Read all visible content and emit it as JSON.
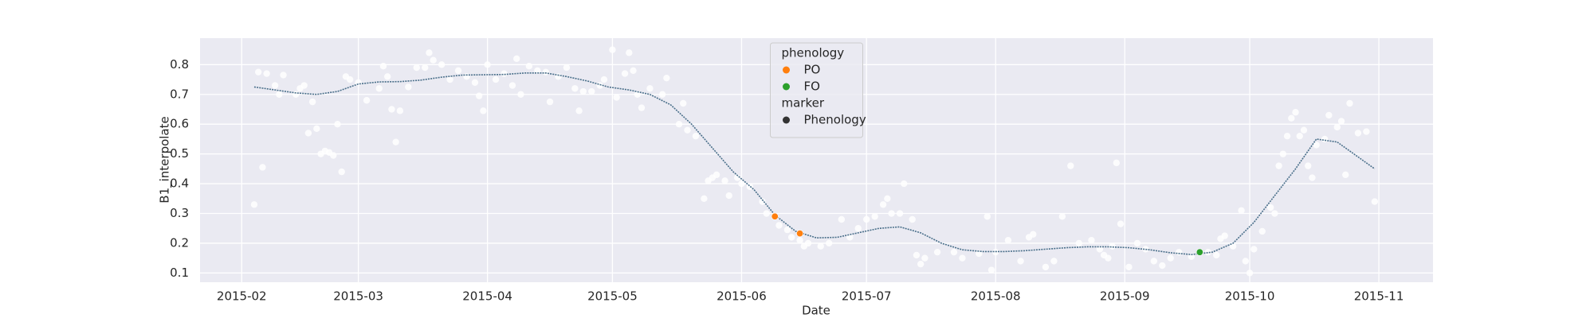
{
  "chart_data": {
    "type": "scatter",
    "x_label": "Date",
    "y_label": "B1_interpolate",
    "xlim": [
      22,
      318
    ],
    "ylim": [
      0.069,
      0.889
    ],
    "xticks": [
      {
        "value": 32,
        "label": "2015-02"
      },
      {
        "value": 60,
        "label": "2015-03"
      },
      {
        "value": 91,
        "label": "2015-04"
      },
      {
        "value": 121,
        "label": "2015-05"
      },
      {
        "value": 152,
        "label": "2015-06"
      },
      {
        "value": 182,
        "label": "2015-07"
      },
      {
        "value": 213,
        "label": "2015-08"
      },
      {
        "value": 244,
        "label": "2015-09"
      },
      {
        "value": 274,
        "label": "2015-10"
      },
      {
        "value": 305,
        "label": "2015-11"
      }
    ],
    "yticks": [
      0.1,
      0.2,
      0.3,
      0.4,
      0.5,
      0.6,
      0.7,
      0.8
    ],
    "grid": true,
    "points": {
      "color": "#ffffff",
      "x": [
        35,
        36,
        37,
        38,
        40,
        41,
        42,
        45,
        46,
        47,
        48,
        49,
        50,
        51,
        52,
        53,
        54,
        55,
        56,
        57,
        58,
        60,
        62,
        65,
        66,
        67,
        68,
        69,
        70,
        72,
        74,
        76,
        77,
        78,
        80,
        82,
        84,
        86,
        88,
        89,
        90,
        91,
        93,
        95,
        97,
        98,
        99,
        101,
        103,
        105,
        106,
        108,
        110,
        112,
        113,
        114,
        116,
        118,
        119,
        121,
        122,
        124,
        125,
        126,
        127,
        128,
        130,
        133,
        134,
        137,
        138,
        139,
        141,
        143,
        144,
        145,
        146,
        148,
        149,
        151,
        152,
        154,
        157,
        158,
        161,
        163,
        164,
        166,
        167,
        168,
        171,
        173,
        176,
        178,
        180,
        182,
        184,
        186,
        187,
        188,
        190,
        191,
        193,
        194,
        195,
        196,
        199,
        203,
        205,
        209,
        211,
        212,
        213,
        216,
        219,
        221,
        222,
        225,
        227,
        229,
        231,
        233,
        236,
        238,
        239,
        240,
        241,
        242,
        243,
        245,
        247,
        249,
        251,
        253,
        255,
        257,
        260,
        264,
        266,
        267,
        268,
        270,
        272,
        273,
        274,
        275,
        277,
        279,
        280,
        281,
        282,
        283,
        284,
        285,
        286,
        287,
        288,
        289,
        290,
        292,
        293,
        295,
        296,
        297,
        298,
        300,
        302,
        304
      ],
      "values": [
        0.33,
        0.775,
        0.455,
        0.77,
        0.73,
        0.7,
        0.765,
        0.7,
        0.72,
        0.73,
        0.57,
        0.675,
        0.585,
        0.5,
        0.51,
        0.505,
        0.495,
        0.6,
        0.44,
        0.76,
        0.75,
        0.74,
        0.68,
        0.72,
        0.795,
        0.76,
        0.65,
        0.54,
        0.645,
        0.725,
        0.79,
        0.79,
        0.84,
        0.815,
        0.8,
        0.75,
        0.78,
        0.76,
        0.74,
        0.695,
        0.645,
        0.8,
        0.75,
        0.77,
        0.73,
        0.82,
        0.7,
        0.795,
        0.78,
        0.775,
        0.675,
        0.76,
        0.79,
        0.72,
        0.645,
        0.71,
        0.71,
        0.73,
        0.75,
        0.85,
        0.69,
        0.77,
        0.84,
        0.78,
        0.7,
        0.655,
        0.72,
        0.7,
        0.755,
        0.6,
        0.67,
        0.58,
        0.56,
        0.35,
        0.41,
        0.42,
        0.43,
        0.41,
        0.36,
        0.42,
        0.4,
        0.39,
        0.34,
        0.3,
        0.26,
        0.245,
        0.22,
        0.21,
        0.19,
        0.2,
        0.19,
        0.2,
        0.28,
        0.22,
        0.25,
        0.28,
        0.29,
        0.33,
        0.35,
        0.3,
        0.3,
        0.4,
        0.28,
        0.16,
        0.13,
        0.15,
        0.17,
        0.17,
        0.15,
        0.165,
        0.29,
        0.11,
        0.17,
        0.21,
        0.14,
        0.22,
        0.23,
        0.12,
        0.14,
        0.29,
        0.46,
        0.2,
        0.21,
        0.18,
        0.16,
        0.15,
        0.19,
        0.47,
        0.265,
        0.12,
        0.2,
        0.18,
        0.14,
        0.125,
        0.15,
        0.17,
        0.155,
        0.17,
        0.16,
        0.215,
        0.225,
        0.19,
        0.31,
        0.14,
        0.1,
        0.18,
        0.24,
        0.32,
        0.3,
        0.46,
        0.5,
        0.56,
        0.62,
        0.64,
        0.56,
        0.58,
        0.46,
        0.42,
        0.53,
        0.55,
        0.63,
        0.59,
        0.61,
        0.43,
        0.67,
        0.57,
        0.575,
        0.34
      ]
    },
    "line": {
      "color": "#4a6f8a",
      "x": [
        35,
        40,
        45,
        50,
        55,
        60,
        65,
        70,
        75,
        80,
        85,
        90,
        95,
        100,
        105,
        110,
        115,
        120,
        125,
        130,
        135,
        140,
        145,
        150,
        155,
        160,
        165,
        170,
        175,
        180,
        185,
        190,
        195,
        200,
        205,
        210,
        215,
        220,
        225,
        230,
        235,
        240,
        245,
        250,
        255,
        260,
        265,
        270,
        275,
        280,
        285,
        290,
        295,
        300,
        304
      ],
      "values": [
        0.725,
        0.715,
        0.705,
        0.7,
        0.71,
        0.735,
        0.742,
        0.743,
        0.748,
        0.758,
        0.765,
        0.766,
        0.767,
        0.772,
        0.772,
        0.76,
        0.745,
        0.725,
        0.715,
        0.7,
        0.665,
        0.6,
        0.52,
        0.44,
        0.38,
        0.295,
        0.24,
        0.218,
        0.22,
        0.235,
        0.25,
        0.255,
        0.235,
        0.2,
        0.178,
        0.172,
        0.172,
        0.175,
        0.18,
        0.185,
        0.188,
        0.188,
        0.185,
        0.178,
        0.168,
        0.162,
        0.17,
        0.2,
        0.27,
        0.36,
        0.45,
        0.55,
        0.54,
        0.49,
        0.45
      ]
    },
    "series": [
      {
        "name": "PO",
        "color": "#ff7f0e",
        "x": [
          160,
          166
        ],
        "values": [
          0.29,
          0.233
        ]
      },
      {
        "name": "FO",
        "color": "#2ca02c",
        "x": [
          262
        ],
        "values": [
          0.17
        ]
      }
    ],
    "legend": {
      "loc": "upper center",
      "title": "phenology",
      "subtitle": "marker",
      "marker_label": "Phenology",
      "marker_color": "#333333"
    }
  }
}
